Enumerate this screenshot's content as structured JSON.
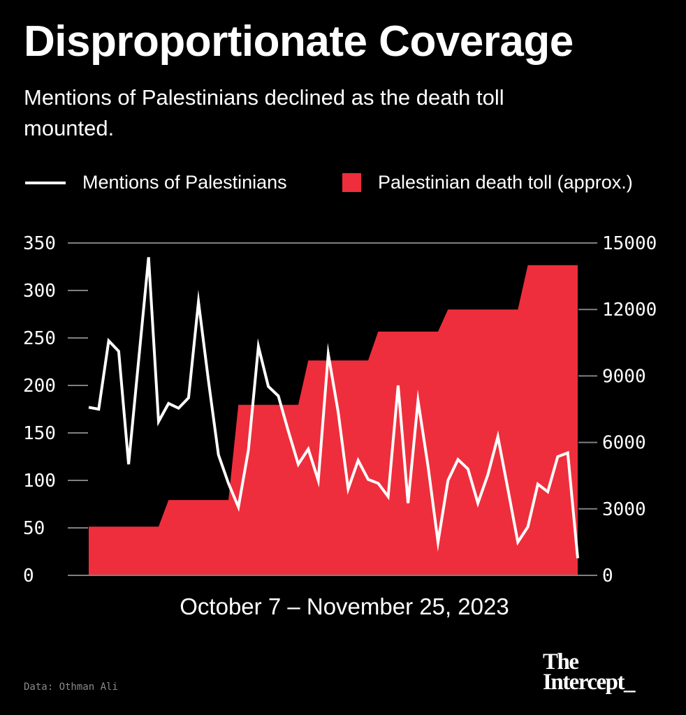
{
  "title": "Disproportionate Coverage",
  "subtitle": "Mentions of Palestinians declined as the death toll mounted.",
  "source": "Data: Othman Ali",
  "logo": "The Intercept_",
  "colors": {
    "background": "#000000",
    "line": "#ffffff",
    "area": "#ee2e3c",
    "grid": "#808080"
  },
  "chart_data": {
    "type": "line+area",
    "xlabel": "October 7 – November 25, 2023",
    "x_start": "2023-10-07",
    "x_end": "2023-11-25",
    "legend_position": "top",
    "left_axis": {
      "ylim": [
        0,
        350
      ],
      "ticks": [
        "0",
        "50",
        "100",
        "150",
        "200",
        "250",
        "300",
        "350"
      ]
    },
    "right_axis": {
      "ylim": [
        0,
        15000
      ],
      "ticks": [
        "0",
        "3000",
        "6000",
        "9000",
        "12000",
        "15000"
      ]
    },
    "series": [
      {
        "name": "Mentions of Palestinians",
        "type": "line",
        "axis": "left",
        "values": [
          177,
          175,
          247,
          236,
          117,
          226,
          335,
          162,
          181,
          176,
          187,
          288,
          205,
          127,
          97,
          72,
          132,
          241,
          199,
          189,
          152,
          117,
          133,
          100,
          233,
          172,
          91,
          121,
          101,
          97,
          83,
          200,
          76,
          184,
          115,
          35,
          100,
          122,
          112,
          76,
          106,
          146,
          91,
          35,
          51,
          96,
          88,
          125,
          129,
          18
        ]
      },
      {
        "name": "Palestinian death toll (approx.)",
        "type": "area",
        "axis": "right",
        "values": [
          2200,
          2200,
          2200,
          2200,
          2200,
          2200,
          2200,
          2200,
          3400,
          3400,
          3400,
          3400,
          3400,
          3400,
          3400,
          7700,
          7700,
          7700,
          7700,
          7700,
          7700,
          7700,
          9700,
          9700,
          9700,
          9700,
          9700,
          9700,
          9700,
          11000,
          11000,
          11000,
          11000,
          11000,
          11000,
          11000,
          12000,
          12000,
          12000,
          12000,
          12000,
          12000,
          12000,
          12000,
          14000,
          14000,
          14000,
          14000,
          14000,
          14000
        ]
      }
    ]
  }
}
